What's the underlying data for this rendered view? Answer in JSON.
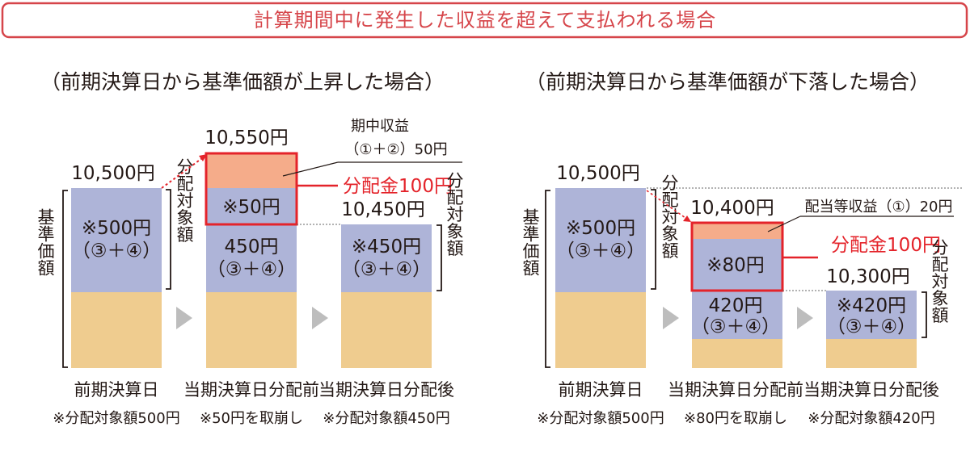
{
  "title": "計算期間中に発生した収益を超えて支払われる場合",
  "colors": {
    "title": "#d6454a",
    "principal": "#aeb4d8",
    "base": "#efcc8f",
    "income": "#f5ac8a",
    "highlight": "#e4232a",
    "arrow": "#bdbdbd"
  },
  "left": {
    "heading": "（前期決算日から基準価額が上昇した場合）",
    "axis_label": "基準価額",
    "bars": [
      {
        "top_value": "10,500円",
        "box_line1": "※500円",
        "box_line2": "（③＋④）",
        "side_label": "分配対象額",
        "caption": "前期決算日",
        "note": "※分配対象額500円"
      },
      {
        "top_value": "10,550円",
        "income_label_line1": "期中収益",
        "income_label_line2": "（①＋②）50円",
        "drawdown": "※50円",
        "box_line1": "450円",
        "box_line2": "（③＋④）",
        "distribution": "分配金100円",
        "caption": "当期決算日分配前",
        "note": "※50円を取崩し"
      },
      {
        "top_value": "10,450円",
        "box_line1": "※450円",
        "box_line2": "（③＋④）",
        "side_label": "分配対象額",
        "caption": "当期決算日分配後",
        "note": "※分配対象額450円"
      }
    ]
  },
  "right": {
    "heading": "（前期決算日から基準価額が下落した場合）",
    "axis_label": "基準価額",
    "bars": [
      {
        "top_value": "10,500円",
        "box_line1": "※500円",
        "box_line2": "（③＋④）",
        "side_label": "分配対象額",
        "caption": "前期決算日",
        "note": "※分配対象額500円"
      },
      {
        "top_value": "10,400円",
        "income_label": "配当等収益（①）20円",
        "drawdown": "※80円",
        "box_line1": "420円",
        "box_line2": "（③＋④）",
        "distribution": "分配金100円",
        "caption": "当期決算日分配前",
        "note": "※80円を取崩し"
      },
      {
        "top_value": "10,300円",
        "box_line1": "※420円",
        "box_line2": "（③＋④）",
        "side_label": "分配対象額",
        "caption": "当期決算日分配後",
        "note": "※分配対象額420円"
      }
    ]
  }
}
